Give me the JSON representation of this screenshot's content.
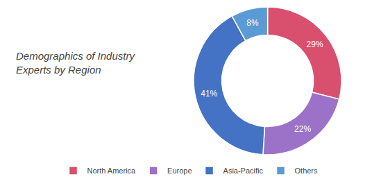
{
  "chart_data": {
    "type": "donut",
    "title": "Demographics of Industry\nExperts by Region",
    "categories": [
      "North America",
      "Europe",
      "Asia-Pacific",
      "Others"
    ],
    "values": [
      29,
      22,
      41,
      8
    ],
    "value_labels": [
      "29%",
      "22%",
      "41%",
      "8%"
    ],
    "colors": [
      "#D94F6E",
      "#9B72C8",
      "#4472C4",
      "#5B9BD5"
    ],
    "data_labels": true,
    "legend": "bottom"
  }
}
